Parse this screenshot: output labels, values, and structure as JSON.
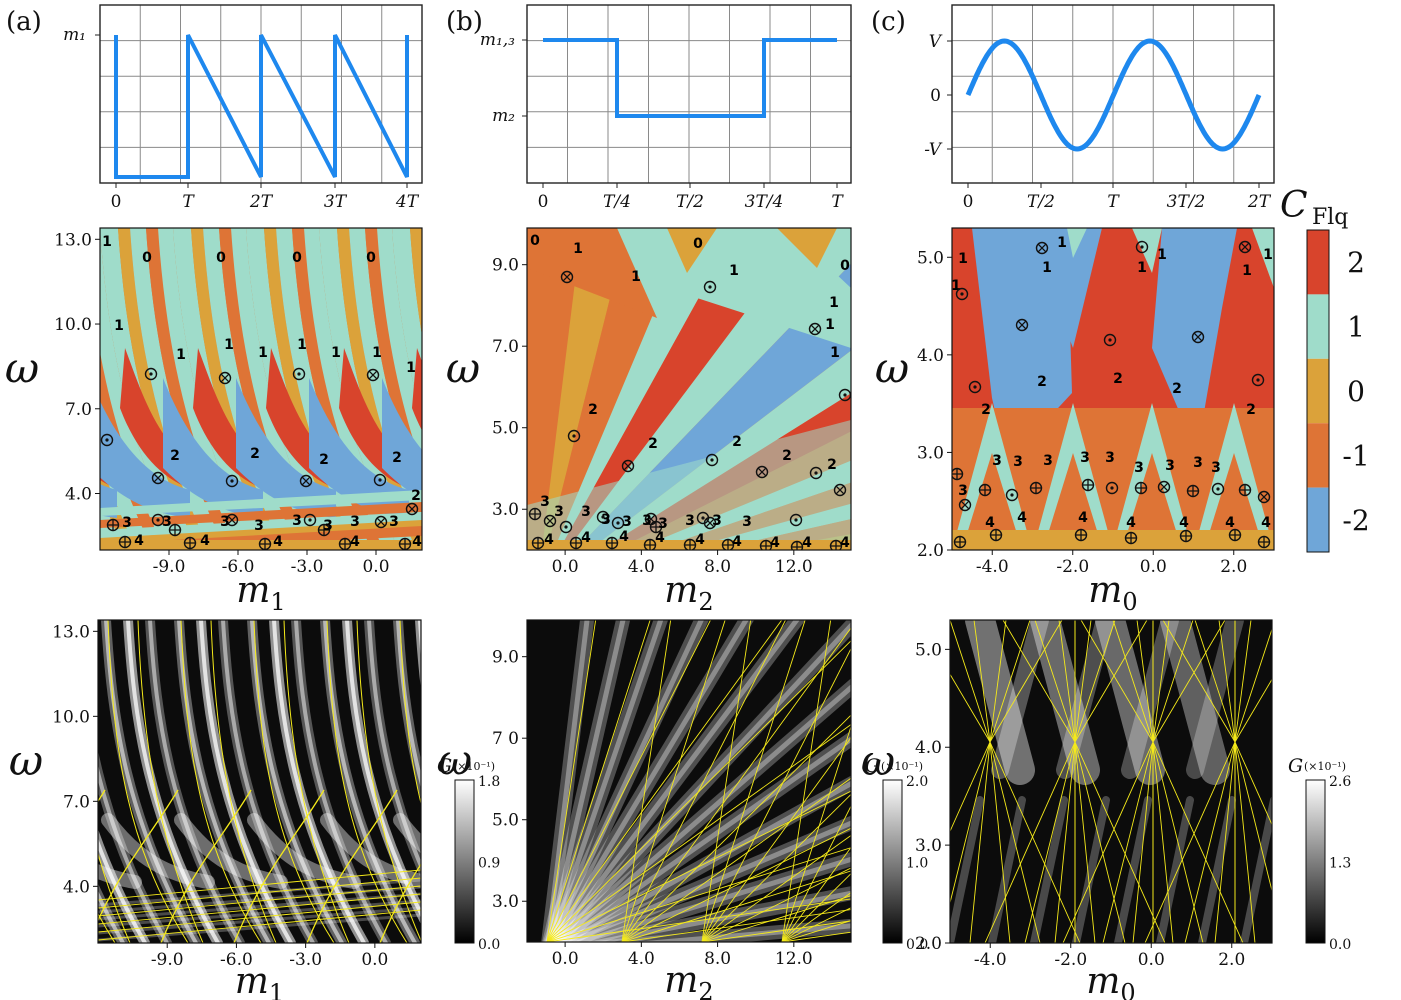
{
  "panel_labels": [
    "(a)",
    "(b)",
    "(c)"
  ],
  "colors": {
    "signal": "#1e88ee",
    "c2": "#d8442c",
    "c1": "#9fdcca",
    "c0": "#dba23a",
    "cm1": "#de7436",
    "cm2": "#6fa6d8",
    "critical_lines": "#f5ea1a",
    "grid": "#8a8a8a"
  },
  "colorbar_phase": {
    "label_main": "C",
    "label_sub": "Flq",
    "ticks": [
      "2",
      "1",
      "0",
      "-1",
      "-2"
    ]
  },
  "chart_data": [
    {
      "id": "drive-a",
      "type": "line",
      "title": "(a)",
      "description_free": true,
      "x_ticks": [
        "0",
        "T",
        "2T",
        "3T",
        "4T"
      ],
      "y_ticks": [
        "m₁"
      ],
      "series": [
        {
          "x": [
            0,
            0,
            0,
            1,
            1,
            1,
            2,
            2,
            2,
            3,
            3,
            3,
            4,
            4
          ],
          "y": [
            1,
            0,
            0,
            0,
            1,
            0,
            0,
            1,
            0,
            0,
            1,
            0,
            0,
            1
          ]
        }
      ],
      "xlim": [
        0,
        4
      ]
    },
    {
      "id": "drive-b",
      "type": "line",
      "title": "(b)",
      "x_ticks": [
        "0",
        "T/4",
        "T/2",
        "3T/4",
        "T"
      ],
      "y_ticks": [
        "m₁,₃",
        "m₂"
      ],
      "series": [
        {
          "x": [
            0,
            0.25,
            0.25,
            0.75,
            0.75,
            1
          ],
          "y": [
            "m1,3",
            "m1,3",
            "m2",
            "m2",
            "m1,3",
            "m1,3"
          ]
        }
      ],
      "xlim": [
        0,
        1
      ]
    },
    {
      "id": "drive-c",
      "type": "line",
      "title": "(c)",
      "x_ticks": [
        "0",
        "T/2",
        "T",
        "3T/2",
        "2T"
      ],
      "y_ticks": [
        "V",
        "0",
        "-V"
      ],
      "series": [
        {
          "function": "V sin(2πt/T)",
          "x_range": [
            0,
            2
          ]
        }
      ],
      "xlim": [
        0,
        2
      ]
    },
    {
      "id": "phase-a",
      "type": "heatmap",
      "xlabel": "m₁",
      "ylabel": "ω",
      "x_ticks": [
        -9.0,
        -6.0,
        -3.0,
        0.0
      ],
      "x_tick_labels": [
        "-9.0",
        "-6.0",
        "-3.0",
        "0.0"
      ],
      "y_ticks": [
        4.0,
        7.0,
        10.0,
        13.0
      ],
      "y_tick_labels": [
        "4.0",
        "7.0",
        "10.0",
        "13.0"
      ],
      "xlim": [
        -12,
        2
      ],
      "ylim": [
        2,
        13.4
      ],
      "chern_values": [
        2,
        1,
        0,
        -1,
        -2
      ],
      "annotations": [
        "1",
        "0",
        "0",
        "0",
        "0",
        "1",
        "1",
        "1",
        "1",
        "1",
        "1",
        "1",
        "1",
        "2",
        "2",
        "2",
        "2",
        "2",
        "3",
        "3",
        "3",
        "3",
        "3",
        "3",
        "3",
        "3",
        "4",
        "4",
        "4",
        "4",
        "4"
      ]
    },
    {
      "id": "phase-b",
      "type": "heatmap",
      "xlabel": "m₂",
      "ylabel": "ω",
      "x_ticks": [
        0.0,
        4.0,
        8.0,
        12.0
      ],
      "x_tick_labels": [
        "0.0",
        "4.0",
        "8.0",
        "12.0"
      ],
      "y_ticks": [
        3.0,
        5.0,
        7.0,
        9.0
      ],
      "y_tick_labels": [
        "3.0",
        "5.0",
        "7.0",
        "9.0"
      ],
      "xlim": [
        -2,
        15
      ],
      "ylim": [
        2,
        9.9
      ],
      "chern_values": [
        2,
        1,
        0,
        -1,
        -2
      ],
      "annotations": [
        "0",
        "1",
        "1",
        "0",
        "0",
        "1",
        "1",
        "1",
        "1",
        "2",
        "2",
        "2",
        "2",
        "2",
        "3",
        "3",
        "3",
        "3",
        "3",
        "3",
        "3",
        "3",
        "3",
        "3",
        "4",
        "4",
        "4",
        "4",
        "4",
        "4",
        "4",
        "4",
        "4"
      ]
    },
    {
      "id": "phase-c",
      "type": "heatmap",
      "xlabel": "m₀",
      "ylabel": "ω",
      "x_ticks": [
        -4.0,
        -2.0,
        0.0,
        2.0
      ],
      "x_tick_labels": [
        "-4.0",
        "-2.0",
        "0.0",
        "2.0"
      ],
      "y_ticks": [
        2.0,
        3.0,
        4.0,
        5.0
      ],
      "y_tick_labels": [
        "2.0",
        "3.0",
        "4.0",
        "5.0"
      ],
      "xlim": [
        -5,
        3
      ],
      "ylim": [
        2,
        5.3
      ],
      "chern_values": [
        2,
        1,
        0,
        -1,
        -2
      ],
      "annotations": [
        "1",
        "1",
        "1",
        "1",
        "1",
        "1",
        "1",
        "2",
        "2",
        "2",
        "2",
        "2",
        "2",
        "3",
        "3",
        "3",
        "3",
        "3",
        "3",
        "3",
        "3",
        "3",
        "3",
        "4",
        "4",
        "4",
        "4",
        "4",
        "4",
        "4",
        "4",
        "4"
      ]
    },
    {
      "id": "cond-a",
      "type": "heatmap",
      "xlabel": "m₁",
      "ylabel": "ω",
      "x_ticks": [
        -9.0,
        -6.0,
        -3.0,
        0.0
      ],
      "x_tick_labels": [
        "-9.0",
        "-6.0",
        "-3.0",
        "0.0"
      ],
      "y_ticks": [
        4.0,
        7.0,
        10.0,
        13.0
      ],
      "y_tick_labels": [
        "4.0",
        "7.0",
        "10.0",
        "13.0"
      ],
      "xlim": [
        -12,
        2
      ],
      "ylim": [
        2,
        13.4
      ],
      "colorbar": {
        "label": "G",
        "unit": "(×10⁻¹)",
        "ticks": [
          "1.8",
          "0.9",
          "0.0"
        ],
        "range": [
          0,
          1.8
        ]
      }
    },
    {
      "id": "cond-b",
      "type": "heatmap",
      "xlabel": "m₂",
      "ylabel": "ω",
      "x_ticks": [
        0.0,
        4.0,
        8.0,
        12.0
      ],
      "x_tick_labels": [
        "0.0",
        "4.0",
        "8.0",
        "12.0"
      ],
      "y_ticks": [
        3.0,
        5.0,
        7.0,
        9.0
      ],
      "y_tick_labels": [
        "3.0",
        "5.0",
        "7 0",
        "9.0"
      ],
      "xlim": [
        -2,
        15
      ],
      "ylim": [
        2,
        9.9
      ],
      "colorbar": {
        "label": "G",
        "unit": "(×10⁻¹)",
        "ticks": [
          "2.0",
          "1.0",
          "0.0"
        ],
        "range": [
          0,
          2.0
        ]
      }
    },
    {
      "id": "cond-c",
      "type": "heatmap",
      "xlabel": "m₀",
      "ylabel": "ω",
      "x_ticks": [
        -4.0,
        -2.0,
        0.0,
        2.0
      ],
      "x_tick_labels": [
        "-4.0",
        "-2.0",
        "0.0",
        "2.0"
      ],
      "y_ticks": [
        2.0,
        3.0,
        4.0,
        5.0
      ],
      "y_tick_labels": [
        "2.0",
        "3.0",
        "4.0",
        "5.0"
      ],
      "xlim": [
        -5,
        3
      ],
      "ylim": [
        2,
        5.3
      ],
      "colorbar": {
        "label": "G",
        "unit": "(×10⁻¹)",
        "ticks": [
          "2.6",
          "1.3",
          "0.0"
        ],
        "range": [
          0,
          2.6
        ]
      }
    }
  ]
}
